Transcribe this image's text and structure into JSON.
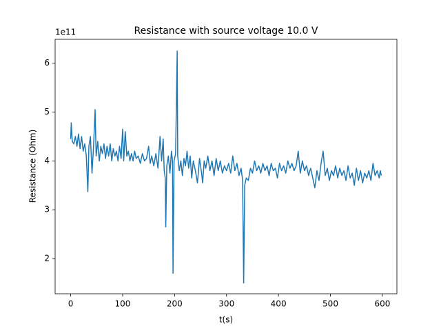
{
  "chart_data": {
    "type": "line",
    "title": "Resistance with source voltage 10.0 V",
    "xlabel": "t(s)",
    "ylabel": "Resistance (Ohm)",
    "y_offset_label": "1e11",
    "color": "#1f77b4",
    "xlim": [
      -30,
      628
    ],
    "ylim": [
      1.28,
      6.49
    ],
    "xticks": [
      0,
      100,
      200,
      300,
      400,
      500,
      600
    ],
    "yticks": [
      2,
      3,
      4,
      5,
      6
    ],
    "x": [
      0,
      1,
      3,
      6,
      9,
      12,
      15,
      18,
      21,
      24,
      27,
      30,
      33,
      35,
      38,
      41,
      44,
      47,
      49,
      52,
      55,
      58,
      61,
      64,
      67,
      70,
      73,
      76,
      79,
      82,
      85,
      88,
      91,
      94,
      97,
      100,
      102,
      105,
      108,
      111,
      114,
      117,
      120,
      123,
      126,
      130,
      134,
      138,
      142,
      146,
      150,
      153,
      156,
      160,
      164,
      168,
      172,
      175,
      178,
      180,
      182,
      183,
      185,
      188,
      191,
      194,
      196,
      197,
      199,
      202,
      205,
      206,
      209,
      212,
      215,
      218,
      221,
      224,
      227,
      230,
      233,
      236,
      240,
      244,
      248,
      252,
      254,
      257,
      260,
      264,
      268,
      272,
      276,
      280,
      284,
      288,
      292,
      296,
      300,
      304,
      308,
      312,
      316,
      320,
      324,
      328,
      331,
      333,
      335,
      338,
      342,
      346,
      350,
      354,
      358,
      362,
      366,
      370,
      374,
      378,
      382,
      386,
      390,
      394,
      398,
      402,
      406,
      410,
      414,
      418,
      422,
      426,
      430,
      434,
      438,
      442,
      446,
      450,
      454,
      458,
      462,
      466,
      470,
      474,
      478,
      482,
      486,
      490,
      494,
      498,
      502,
      506,
      510,
      514,
      518,
      522,
      526,
      530,
      534,
      538,
      542,
      546,
      550,
      554,
      558,
      562,
      566,
      570,
      574,
      578,
      582,
      586,
      590,
      594,
      596,
      598
    ],
    "values": [
      4.45,
      4.78,
      4.4,
      4.35,
      4.5,
      4.3,
      4.55,
      4.25,
      4.5,
      4.2,
      4.35,
      4.1,
      3.37,
      4.3,
      4.5,
      3.75,
      4.3,
      5.05,
      4.1,
      4.4,
      4.0,
      4.3,
      4.15,
      4.35,
      4.05,
      4.3,
      4.1,
      4.35,
      4.0,
      4.25,
      4.1,
      4.2,
      4.0,
      4.3,
      4.05,
      4.65,
      4.0,
      4.6,
      4.1,
      4.2,
      4.0,
      4.15,
      4.0,
      4.2,
      4.05,
      4.1,
      3.95,
      4.15,
      4.0,
      4.05,
      4.3,
      3.95,
      4.1,
      3.9,
      4.15,
      3.85,
      4.5,
      4.0,
      4.45,
      3.8,
      3.65,
      2.65,
      3.9,
      4.1,
      3.75,
      4.2,
      4.0,
      1.7,
      4.0,
      4.15,
      6.25,
      4.1,
      3.8,
      4.0,
      3.7,
      4.05,
      3.9,
      4.2,
      3.85,
      4.1,
      3.65,
      4.0,
      3.8,
      3.55,
      4.05,
      3.75,
      3.55,
      4.0,
      3.85,
      4.1,
      3.8,
      4.0,
      3.7,
      4.05,
      3.8,
      4.0,
      3.75,
      3.9,
      3.8,
      3.95,
      3.75,
      4.1,
      3.8,
      3.95,
      3.7,
      3.85,
      3.6,
      1.5,
      3.5,
      3.65,
      3.6,
      3.85,
      3.75,
      4.0,
      3.8,
      3.9,
      3.75,
      3.95,
      3.8,
      3.9,
      3.7,
      3.95,
      3.8,
      3.85,
      3.65,
      3.95,
      3.8,
      3.9,
      3.75,
      4.0,
      3.85,
      3.95,
      3.8,
      3.9,
      4.2,
      3.75,
      4.0,
      3.8,
      3.9,
      3.7,
      3.85,
      3.65,
      3.45,
      3.8,
      3.6,
      3.95,
      4.2,
      3.7,
      3.85,
      3.6,
      3.8,
      3.7,
      3.9,
      3.65,
      3.85,
      3.7,
      3.8,
      3.6,
      3.9,
      3.65,
      3.75,
      3.5,
      3.85,
      3.6,
      3.8,
      3.55,
      3.75,
      3.65,
      3.8,
      3.6,
      3.95,
      3.7,
      3.8,
      3.65,
      3.8,
      3.7
    ]
  }
}
